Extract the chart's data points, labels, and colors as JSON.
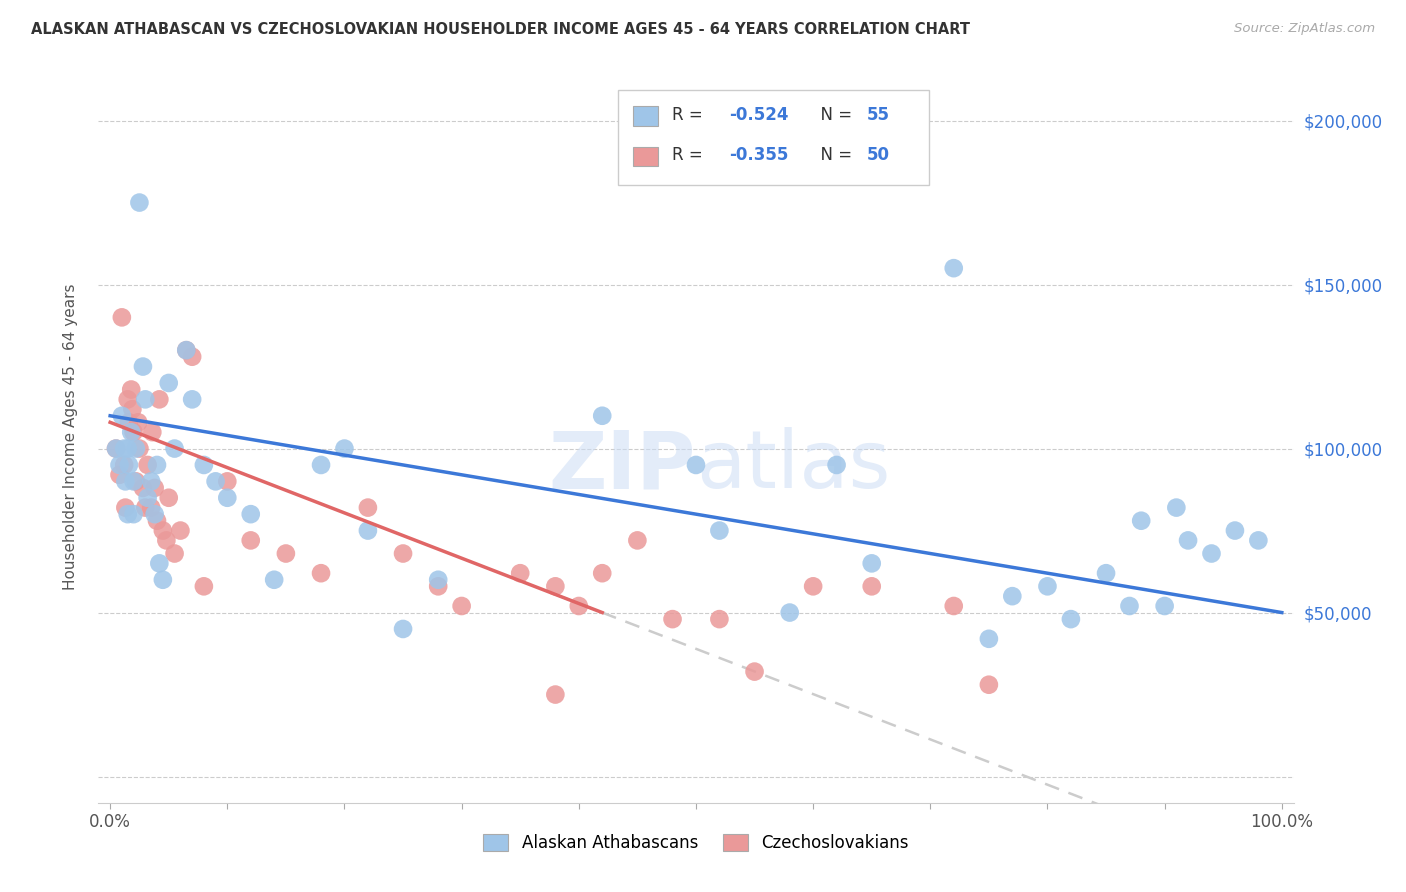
{
  "title": "ALASKAN ATHABASCAN VS CZECHOSLOVAKIAN HOUSEHOLDER INCOME AGES 45 - 64 YEARS CORRELATION CHART",
  "source": "Source: ZipAtlas.com",
  "ylabel": "Householder Income Ages 45 - 64 years",
  "legend_label1": "Alaskan Athabascans",
  "legend_label2": "Czechoslovakians",
  "legend_R1": "-0.524",
  "legend_N1": "55",
  "legend_R2": "-0.355",
  "legend_N2": "50",
  "ytick_values": [
    0,
    50000,
    100000,
    150000,
    200000
  ],
  "ytick_labels_right": [
    "",
    "$50,000",
    "$100,000",
    "$150,000",
    "$200,000"
  ],
  "color_blue": "#9fc5e8",
  "color_pink": "#ea9999",
  "color_blue_line": "#3c78d8",
  "color_pink_line": "#e06666",
  "color_dashed": "#cccccc",
  "background": "#ffffff",
  "blue_x": [
    0.005,
    0.008,
    0.01,
    0.012,
    0.013,
    0.015,
    0.015,
    0.016,
    0.018,
    0.02,
    0.02,
    0.022,
    0.025,
    0.028,
    0.03,
    0.032,
    0.035,
    0.038,
    0.04,
    0.042,
    0.045,
    0.05,
    0.055,
    0.065,
    0.07,
    0.08,
    0.09,
    0.1,
    0.12,
    0.14,
    0.18,
    0.2,
    0.22,
    0.25,
    0.28,
    0.42,
    0.5,
    0.52,
    0.58,
    0.62,
    0.65,
    0.72,
    0.75,
    0.77,
    0.8,
    0.82,
    0.85,
    0.87,
    0.88,
    0.9,
    0.91,
    0.92,
    0.94,
    0.96,
    0.98
  ],
  "blue_y": [
    100000,
    95000,
    110000,
    100000,
    90000,
    100000,
    80000,
    95000,
    105000,
    90000,
    80000,
    100000,
    175000,
    125000,
    115000,
    85000,
    90000,
    80000,
    95000,
    65000,
    60000,
    120000,
    100000,
    130000,
    115000,
    95000,
    90000,
    85000,
    80000,
    60000,
    95000,
    100000,
    75000,
    45000,
    60000,
    110000,
    95000,
    75000,
    50000,
    95000,
    65000,
    155000,
    42000,
    55000,
    58000,
    48000,
    62000,
    52000,
    78000,
    52000,
    82000,
    72000,
    68000,
    75000,
    72000
  ],
  "pink_x": [
    0.005,
    0.008,
    0.01,
    0.012,
    0.013,
    0.015,
    0.016,
    0.018,
    0.019,
    0.02,
    0.022,
    0.024,
    0.025,
    0.028,
    0.03,
    0.032,
    0.035,
    0.036,
    0.038,
    0.04,
    0.042,
    0.045,
    0.048,
    0.05,
    0.055,
    0.06,
    0.065,
    0.07,
    0.08,
    0.1,
    0.12,
    0.15,
    0.18,
    0.22,
    0.25,
    0.28,
    0.3,
    0.35,
    0.38,
    0.4,
    0.42,
    0.45,
    0.48,
    0.52,
    0.55,
    0.6,
    0.65,
    0.72,
    0.75,
    0.38
  ],
  "pink_y": [
    100000,
    92000,
    140000,
    95000,
    82000,
    115000,
    108000,
    118000,
    112000,
    105000,
    90000,
    108000,
    100000,
    88000,
    82000,
    95000,
    82000,
    105000,
    88000,
    78000,
    115000,
    75000,
    72000,
    85000,
    68000,
    75000,
    130000,
    128000,
    58000,
    90000,
    72000,
    68000,
    62000,
    82000,
    68000,
    58000,
    52000,
    62000,
    58000,
    52000,
    62000,
    72000,
    48000,
    48000,
    32000,
    58000,
    58000,
    52000,
    28000,
    25000
  ]
}
